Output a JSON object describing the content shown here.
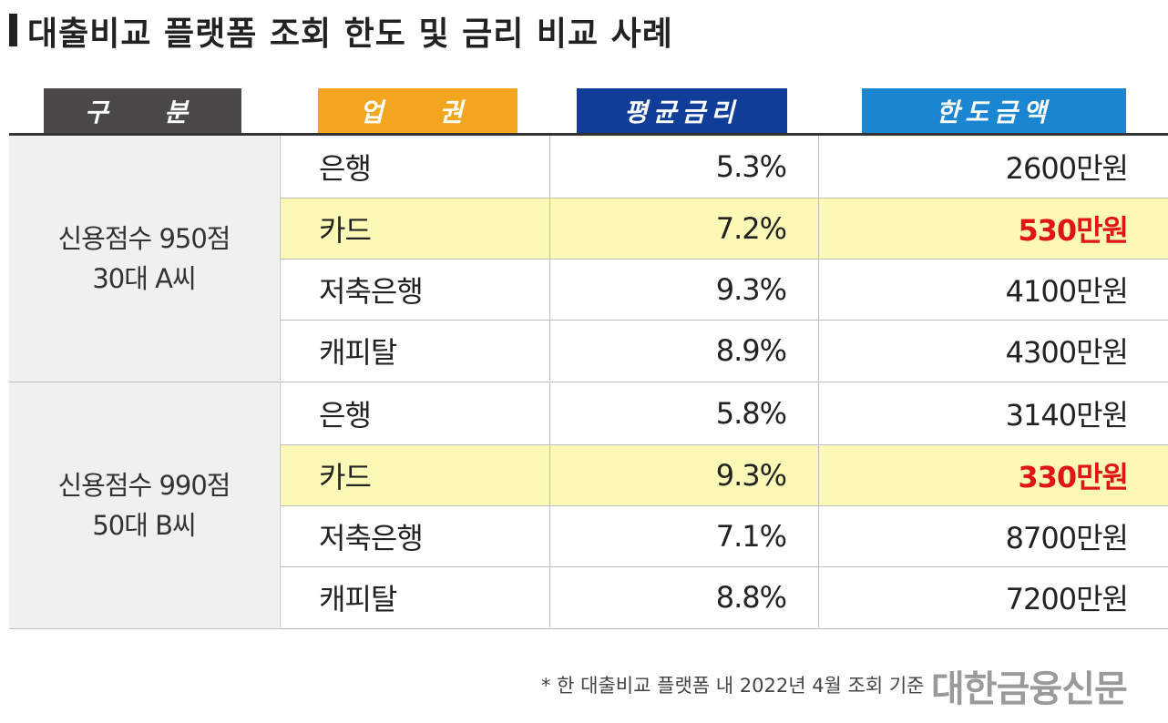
{
  "title": "대출비교 플랫폼 조회 한도 및 금리 비교 사례",
  "headers": [
    "구  분",
    "업  권",
    "평균금리",
    "한도금액"
  ],
  "colors": {
    "header_gray": "#4a4848",
    "header_orange": "#f2a51f",
    "header_navy": "#0f3d98",
    "header_blue": "#1a86d2",
    "highlight_row": "#fcf8b5",
    "highlight_text": "#e01616"
  },
  "groups": [
    {
      "label_line1": "신용점수 950점",
      "label_line2": "30대 A씨",
      "rows": [
        {
          "type": "은행",
          "rate": "5.3%",
          "limit": "2600만원"
        },
        {
          "type": "카드",
          "rate": "7.2%",
          "limit": "530만원"
        },
        {
          "type": "저축은행",
          "rate": "9.3%",
          "limit": "4100만원"
        },
        {
          "type": "캐피탈",
          "rate": "8.9%",
          "limit": "4300만원"
        }
      ]
    },
    {
      "label_line1": "신용점수 990점",
      "label_line2": "50대 B씨",
      "rows": [
        {
          "type": "은행",
          "rate": "5.8%",
          "limit": "3140만원"
        },
        {
          "type": "카드",
          "rate": "9.3%",
          "limit": "330만원"
        },
        {
          "type": "저축은행",
          "rate": "7.1%",
          "limit": "8700만원"
        },
        {
          "type": "캐피탈",
          "rate": "8.8%",
          "limit": "7200만원"
        }
      ]
    }
  ],
  "footnote": "* 한 대출비교 플랫폼 내 2022년 4월 조회 기준",
  "logo": "대한금융신문"
}
